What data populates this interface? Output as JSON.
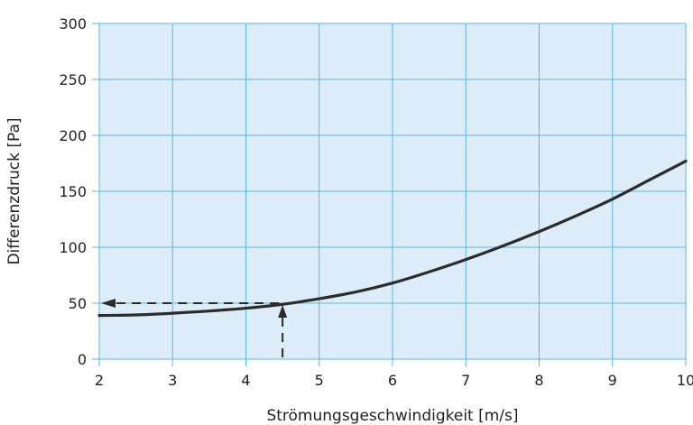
{
  "chart_data": {
    "type": "line",
    "title": "",
    "xlabel": "Strömungsgeschwindigkeit [m/s]",
    "ylabel": "Differenzdruck [Pa]",
    "xlim": [
      2,
      10
    ],
    "ylim": [
      0,
      300
    ],
    "xticks": [
      "2",
      "3",
      "4",
      "5",
      "6",
      "7",
      "8",
      "9",
      "10"
    ],
    "yticks": [
      "0",
      "50",
      "100",
      "150",
      "200",
      "250",
      "300"
    ],
    "grid": true,
    "colors": {
      "plot_background": "#dcedf9",
      "grid": "#5bb8de",
      "curve": "#2b2b2b"
    },
    "series": [
      {
        "x": [
          2,
          2.5,
          3,
          3.5,
          4,
          4.5,
          5,
          5.5,
          6,
          6.5,
          7,
          7.5,
          8,
          8.5,
          9,
          9.5,
          10
        ],
        "y": [
          39,
          39.5,
          41,
          43,
          45.5,
          49,
          54,
          60,
          68,
          78,
          89,
          101,
          114,
          128,
          143,
          160,
          177
        ]
      }
    ],
    "reading_example": {
      "x": 4.5,
      "y": 50
    }
  }
}
